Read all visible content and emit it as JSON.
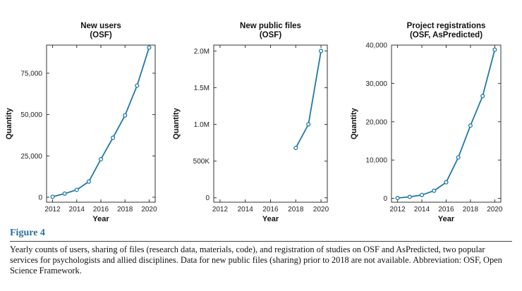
{
  "figure_label": "Figure 4",
  "caption": "Yearly counts of users, sharing of files (research data, materials, code), and registration of studies on OSF and AsPredicted, two popular services for psychologists and allied disciplines. Data for new public files (sharing) prior to 2018 are not available. Abbreviation: OSF, Open Science Framework.",
  "colors": {
    "line": "#1f77a8",
    "marker_fill": "#ffffff",
    "axis": "#333333"
  },
  "chart_data": [
    {
      "type": "line",
      "title": [
        "New users",
        "(OSF)"
      ],
      "xlabel": "Year",
      "ylabel": "Quantity",
      "xlim": [
        2011.5,
        2020.5
      ],
      "ylim": [
        -3000,
        92000
      ],
      "xticks": [
        2012,
        2014,
        2016,
        2018,
        2020
      ],
      "yticks": [
        0,
        25000,
        50000,
        75000
      ],
      "yticklabels": [
        "0",
        "25,000",
        "50,000",
        "75,000"
      ],
      "x": [
        2012,
        2013,
        2014,
        2015,
        2016,
        2017,
        2018,
        2019,
        2020
      ],
      "y": [
        300,
        2200,
        4500,
        9500,
        23000,
        36000,
        49500,
        67500,
        90500
      ]
    },
    {
      "type": "line",
      "title": [
        "New public files",
        "(OSF)"
      ],
      "xlabel": "Year",
      "ylabel": "Quantity",
      "xlim": [
        2011.5,
        2020.5
      ],
      "ylim": [
        -60000,
        2080000
      ],
      "xticks": [
        2012,
        2014,
        2016,
        2018,
        2020
      ],
      "yticks": [
        0,
        500000,
        1000000,
        1500000,
        2000000
      ],
      "yticklabels": [
        "0",
        "500K",
        "1.0M",
        "1.5M",
        "2.0M"
      ],
      "x": [
        2018,
        2019,
        2020
      ],
      "y": [
        680000,
        1000000,
        2000000
      ]
    },
    {
      "type": "line",
      "title": [
        "Project registrations",
        "(OSF, AsPredicted)"
      ],
      "xlabel": "Year",
      "ylabel": "Quantity",
      "xlim": [
        2011.5,
        2020.5
      ],
      "ylim": [
        -1000,
        40000
      ],
      "xticks": [
        2012,
        2014,
        2016,
        2018,
        2020
      ],
      "yticks": [
        0,
        10000,
        20000,
        30000,
        40000
      ],
      "yticklabels": [
        "0",
        "10,000",
        "20,000",
        "30,000",
        "40,000"
      ],
      "x": [
        2012,
        2013,
        2014,
        2015,
        2016,
        2017,
        2018,
        2019,
        2020
      ],
      "y": [
        100,
        400,
        900,
        2000,
        4200,
        10700,
        19000,
        26700,
        38800
      ]
    }
  ]
}
